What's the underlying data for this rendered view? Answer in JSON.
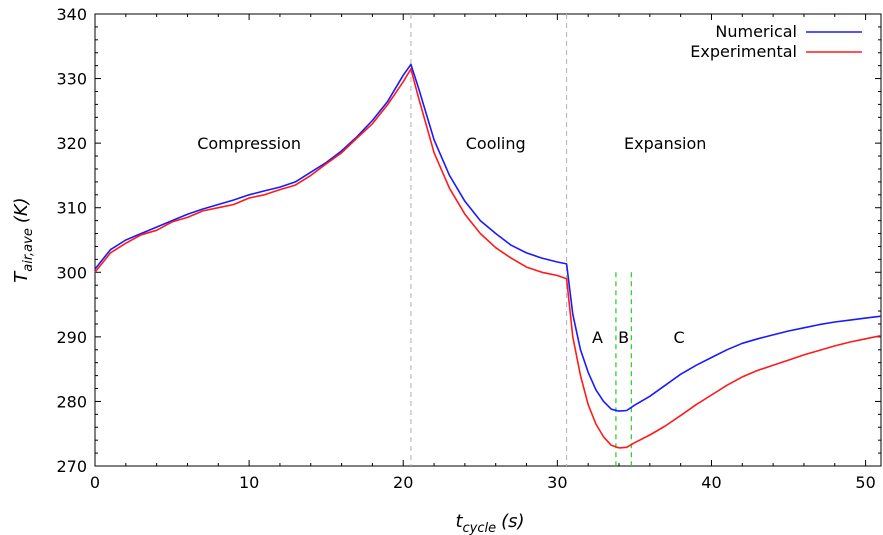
{
  "chart_data": {
    "type": "line",
    "title": "",
    "xlabel": {
      "main": "t",
      "sub": "cycle",
      "unit": "(s)"
    },
    "ylabel": {
      "main": "T",
      "sub": "air,ave",
      "unit": "(K)"
    },
    "xlim": [
      0,
      51
    ],
    "ylim": [
      270,
      340
    ],
    "xticks": [
      0,
      10,
      20,
      30,
      40,
      50
    ],
    "yticks": [
      270,
      280,
      290,
      300,
      310,
      320,
      330,
      340
    ],
    "legend_position": "top-right",
    "grid": false,
    "series": [
      {
        "name": "Numerical",
        "color": "#1a1aff",
        "x": [
          0,
          0.5,
          1,
          2,
          3,
          4,
          5,
          6,
          7,
          8,
          9,
          10,
          11,
          12,
          13,
          14,
          15,
          16,
          17,
          18,
          19,
          20,
          20.5,
          21,
          22,
          23,
          24,
          25,
          26,
          27,
          28,
          29,
          30,
          30.6,
          31,
          31.5,
          32,
          32.5,
          33,
          33.5,
          34,
          34.5,
          35,
          36,
          37,
          38,
          39,
          40,
          41,
          42,
          43,
          44,
          45,
          46,
          47,
          48,
          49,
          50,
          51
        ],
        "y": [
          300.5,
          302,
          303.5,
          305,
          306,
          307,
          308,
          309,
          309.8,
          310.5,
          311.2,
          312,
          312.6,
          313.2,
          314,
          315.5,
          317,
          318.8,
          321,
          323.5,
          326.5,
          330.5,
          332.2,
          328.5,
          320.5,
          315,
          311,
          308,
          306,
          304.2,
          303,
          302.2,
          301.6,
          301.3,
          293.5,
          288,
          284.5,
          281.8,
          280,
          278.8,
          278.5,
          278.6,
          279.4,
          280.8,
          282.5,
          284.2,
          285.6,
          286.8,
          288,
          289,
          289.7,
          290.3,
          290.9,
          291.4,
          291.9,
          292.3,
          292.6,
          292.9,
          293.2
        ]
      },
      {
        "name": "Experimental",
        "color": "#ff1a1a",
        "x": [
          0,
          0.5,
          1,
          2,
          3,
          4,
          5,
          6,
          7,
          8,
          9,
          10,
          11,
          12,
          13,
          14,
          15,
          16,
          17,
          18,
          19,
          20,
          20.5,
          21,
          22,
          23,
          24,
          25,
          26,
          27,
          28,
          29,
          30,
          30.6,
          31,
          31.5,
          32,
          32.5,
          33,
          33.5,
          34,
          34.5,
          35,
          36,
          37,
          38,
          39,
          40,
          41,
          42,
          43,
          44,
          45,
          46,
          47,
          48,
          49,
          50,
          51
        ],
        "y": [
          300,
          301.5,
          303,
          304.5,
          305.8,
          306.5,
          307.8,
          308.5,
          309.5,
          310,
          310.5,
          311.5,
          312,
          312.8,
          313.5,
          315,
          316.8,
          318.5,
          320.8,
          323,
          326,
          329.5,
          331.5,
          327,
          318.5,
          313,
          309,
          306,
          303.8,
          302.2,
          300.8,
          300,
          299.5,
          299,
          290,
          284,
          279.5,
          276.5,
          274.5,
          273.2,
          272.8,
          272.9,
          273.6,
          274.8,
          276.2,
          277.8,
          279.5,
          281,
          282.5,
          283.8,
          284.8,
          285.6,
          286.4,
          287.2,
          287.9,
          288.6,
          289.2,
          289.7,
          290.2
        ]
      }
    ],
    "vlines_gray": [
      20.5,
      30.6
    ],
    "vlines_green": [
      33.8,
      34.8
    ],
    "region_labels": [
      {
        "text": "Compression",
        "x": 10,
        "y": 320
      },
      {
        "text": "Cooling",
        "x": 26,
        "y": 320
      },
      {
        "text": "Expansion",
        "x": 37,
        "y": 320
      },
      {
        "text": "A",
        "x": 32.6,
        "y": 290
      },
      {
        "text": "B",
        "x": 34.3,
        "y": 290
      },
      {
        "text": "C",
        "x": 37.9,
        "y": 290
      }
    ]
  }
}
